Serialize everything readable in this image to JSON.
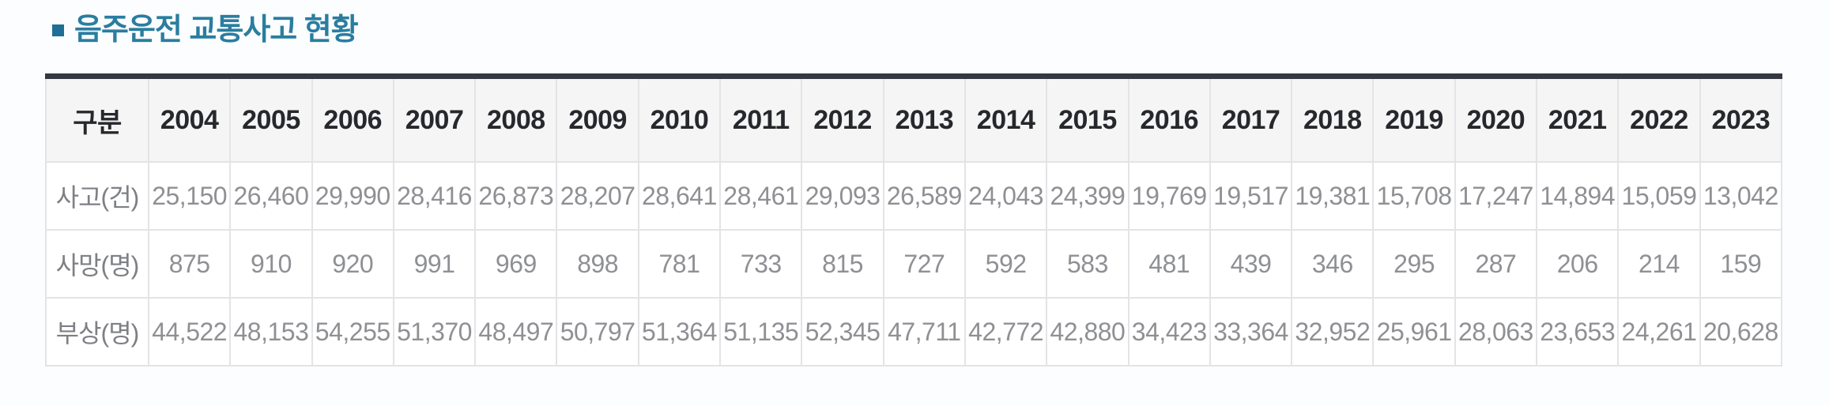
{
  "section": {
    "title": "음주운전 교통사고 현황"
  },
  "table": {
    "corner_label": "구분",
    "years": [
      "2004",
      "2005",
      "2006",
      "2007",
      "2008",
      "2009",
      "2010",
      "2011",
      "2012",
      "2013",
      "2014",
      "2015",
      "2016",
      "2017",
      "2018",
      "2019",
      "2020",
      "2021",
      "2022",
      "2023"
    ],
    "rows": [
      {
        "label": "사고(건)",
        "values": [
          "25,150",
          "26,460",
          "29,990",
          "28,416",
          "26,873",
          "28,207",
          "28,641",
          "28,461",
          "29,093",
          "26,589",
          "24,043",
          "24,399",
          "19,769",
          "19,517",
          "19,381",
          "15,708",
          "17,247",
          "14,894",
          "15,059",
          "13,042"
        ]
      },
      {
        "label": "사망(명)",
        "values": [
          "875",
          "910",
          "920",
          "991",
          "969",
          "898",
          "781",
          "733",
          "815",
          "727",
          "592",
          "583",
          "481",
          "439",
          "346",
          "295",
          "287",
          "206",
          "214",
          "159"
        ]
      },
      {
        "label": "부상(명)",
        "values": [
          "44,522",
          "48,153",
          "54,255",
          "51,370",
          "48,497",
          "50,797",
          "51,364",
          "51,135",
          "52,345",
          "47,711",
          "42,772",
          "42,880",
          "34,423",
          "33,364",
          "32,952",
          "25,961",
          "28,063",
          "23,653",
          "24,261",
          "20,628"
        ]
      }
    ]
  },
  "colors": {
    "title_text": "#2a7da0",
    "title_bullet": "#1e6e96",
    "table_top_border": "#343840",
    "cell_border": "#e3e4e6",
    "header_bg": "#f5f5f6",
    "header_text": "#26282c",
    "data_text": "#8f9094",
    "page_bg": "#fbfdfe"
  },
  "chart_data": {
    "type": "table",
    "title": "음주운전 교통사고 현황",
    "categories": [
      2004,
      2005,
      2006,
      2007,
      2008,
      2009,
      2010,
      2011,
      2012,
      2013,
      2014,
      2015,
      2016,
      2017,
      2018,
      2019,
      2020,
      2021,
      2022,
      2023
    ],
    "series": [
      {
        "name": "사고(건)",
        "values": [
          25150,
          26460,
          29990,
          28416,
          26873,
          28207,
          28641,
          28461,
          29093,
          26589,
          24043,
          24399,
          19769,
          19517,
          19381,
          15708,
          17247,
          14894,
          15059,
          13042
        ]
      },
      {
        "name": "사망(명)",
        "values": [
          875,
          910,
          920,
          991,
          969,
          898,
          781,
          733,
          815,
          727,
          592,
          583,
          481,
          439,
          346,
          295,
          287,
          206,
          214,
          159
        ]
      },
      {
        "name": "부상(명)",
        "values": [
          44522,
          48153,
          54255,
          51370,
          48497,
          50797,
          51364,
          51135,
          52345,
          47711,
          42772,
          42880,
          34423,
          33364,
          32952,
          25961,
          28063,
          23653,
          24261,
          20628
        ]
      }
    ]
  }
}
